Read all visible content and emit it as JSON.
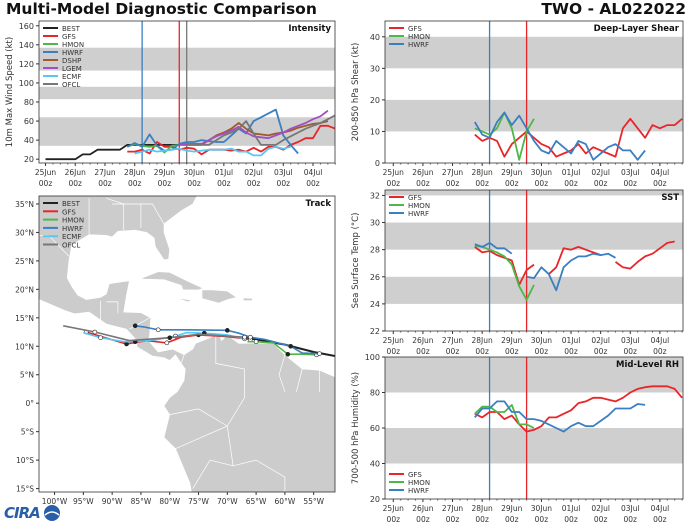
{
  "header": {
    "title": "Multi-Model Diagnostic Comparison",
    "storm": "TWO - AL022022"
  },
  "logo": {
    "text": "CIRA"
  },
  "colors": {
    "BEST": "#222222",
    "GFS": "#e8262a",
    "HMON": "#4db848",
    "HWRF": "#3a7fc1",
    "DSHP": "#9c5a2e",
    "LGEM": "#a24fc2",
    "ECMF": "#56c8f2",
    "OFCL": "#777777",
    "band": "#cfcfcf",
    "land": "#cccccc"
  },
  "time_ticks": [
    "25Jun",
    "26Jun",
    "27Jun",
    "28Jun",
    "29Jun",
    "30Jun",
    "01Jul",
    "02Jul",
    "03Jul",
    "04Jul"
  ],
  "time_tick_hour": "00z",
  "chart_data": [
    {
      "type": "line",
      "title": "Intensity",
      "ylabel": "10m Max Wind Speed (kt)",
      "ylim": [
        16,
        165
      ],
      "yticks": [
        20,
        40,
        60,
        80,
        100,
        120,
        140,
        160
      ],
      "bands": [
        [
          34,
          64
        ],
        [
          83,
          96
        ],
        [
          113,
          137
        ]
      ],
      "legend_position": "top-left",
      "vlines": [
        {
          "time": "28Jun 06z",
          "color": "#3a7fc1"
        },
        {
          "time": "29Jun 12z",
          "color": "#e8262a"
        },
        {
          "time": "29Jun 18z",
          "color": "#777777"
        }
      ],
      "series": [
        {
          "name": "BEST",
          "start": "25Jun 00z",
          "step_hours": 6,
          "values": [
            20,
            20,
            20,
            20,
            20,
            25,
            25,
            30,
            30,
            30,
            30,
            35,
            35,
            35,
            35,
            35,
            35,
            35,
            35
          ]
        },
        {
          "name": "GFS",
          "start": "27Jun 18z",
          "step_hours": 6,
          "values": [
            28,
            28,
            30,
            26,
            38,
            33,
            33,
            30,
            32,
            31,
            25,
            30,
            30,
            30,
            29,
            30,
            28,
            32,
            28,
            33,
            33,
            30,
            35,
            38,
            42,
            42,
            55,
            55,
            52
          ]
        },
        {
          "name": "HMON",
          "start": "27Jun 18z",
          "step_hours": 6,
          "values": [
            33,
            36,
            34,
            33,
            34,
            27,
            34,
            35
          ]
        },
        {
          "name": "HWRF",
          "start": "27Jun 18z",
          "step_hours": 6,
          "values": [
            33,
            37,
            33,
            46,
            34,
            29,
            30,
            36,
            38,
            38,
            40,
            39,
            38,
            38,
            45,
            52,
            47,
            60,
            64,
            68,
            72,
            45,
            35,
            26
          ]
        },
        {
          "name": "DSHP",
          "start": "29Jun 12z",
          "step_hours": 6,
          "values": [
            35,
            35,
            35,
            35,
            40,
            45,
            48,
            52,
            58,
            52,
            47,
            46,
            45,
            47,
            48,
            50,
            53,
            55,
            57,
            58,
            60
          ]
        },
        {
          "name": "LGEM",
          "start": "29Jun 12z",
          "step_hours": 6,
          "values": [
            35,
            36,
            36,
            36,
            40,
            44,
            47,
            50,
            54,
            48,
            44,
            43,
            42,
            45,
            48,
            52,
            55,
            58,
            62,
            65,
            71
          ]
        },
        {
          "name": "ECMF",
          "start": "28Jun 00z",
          "step_hours": 6,
          "values": [
            26,
            28,
            30,
            28,
            29,
            30,
            31,
            29,
            28,
            29,
            30,
            30,
            30,
            31,
            28,
            28,
            24,
            24,
            31,
            33,
            31,
            33
          ]
        },
        {
          "name": "OFCL",
          "start": "29Jun 18z",
          "step_hours": 6,
          "values": [
            35,
            35,
            35,
            35,
            40,
            45,
            48,
            52,
            60,
            47,
            35,
            35,
            35,
            40,
            44,
            48,
            52,
            55,
            58,
            62,
            66
          ]
        }
      ]
    },
    {
      "type": "line",
      "title": "Deep-Layer Shear",
      "ylabel": "200-850 hPa Shear (kt)",
      "ylim": [
        0,
        45
      ],
      "yticks": [
        0,
        10,
        20,
        30,
        40
      ],
      "bands": [
        [
          10,
          20
        ],
        [
          30,
          40
        ]
      ],
      "legend_position": "top-left",
      "vlines": [
        {
          "time": "28Jun 06z",
          "color": "#3a7fc1"
        },
        {
          "time": "29Jun 12z",
          "color": "#e8262a"
        }
      ],
      "series": [
        {
          "name": "GFS",
          "start": "27Jun 18z",
          "step_hours": 6,
          "values": [
            9,
            7,
            8,
            7,
            2,
            6,
            8,
            10,
            8,
            6,
            5,
            2,
            3,
            4,
            6,
            3,
            5,
            4,
            3,
            2,
            11,
            14,
            11,
            8,
            12,
            11,
            12,
            12,
            14
          ]
        },
        {
          "name": "HMON",
          "start": "27Jun 18z",
          "step_hours": 6,
          "values": [
            11,
            10,
            9,
            11,
            16,
            11,
            1,
            10,
            14
          ]
        },
        {
          "name": "HWRF",
          "start": "27Jun 18z",
          "step_hours": 6,
          "values": [
            13,
            9,
            8,
            13,
            16,
            12,
            15,
            11,
            7,
            4,
            3,
            7,
            5,
            3,
            7,
            6,
            1,
            3,
            5,
            6,
            4,
            4,
            1,
            4
          ]
        }
      ]
    },
    {
      "type": "line",
      "title": "SST",
      "ylabel": "Sea Surface Temp (°C)",
      "ylim": [
        22,
        32.4
      ],
      "yticks": [
        22,
        24,
        26,
        28,
        30,
        32
      ],
      "bands": [
        [
          24,
          26
        ],
        [
          28,
          30
        ],
        [
          32,
          33
        ]
      ],
      "legend_position": "top-left",
      "vlines": [
        {
          "time": "28Jun 06z",
          "color": "#3a7fc1"
        },
        {
          "time": "29Jun 12z",
          "color": "#e8262a"
        }
      ],
      "series": [
        {
          "name": "GFS",
          "start": "27Jun 18z",
          "step_hours": 6,
          "values": [
            28.2,
            27.8,
            27.9,
            27.6,
            27.4,
            27.2,
            25.4,
            26.5,
            26.9,
            null,
            26.2,
            26.7,
            28.1,
            28.0,
            28.2,
            28.0,
            27.8,
            27.6,
            null,
            27.1,
            26.7,
            26.6,
            27.1,
            27.5,
            27.7,
            28.1,
            28.5,
            28.6
          ]
        },
        {
          "name": "HMON",
          "start": "27Jun 18z",
          "step_hours": 6,
          "values": [
            28.3,
            28.2,
            28.0,
            27.8,
            27.5,
            26.9,
            25.3,
            24.3,
            25.4
          ]
        },
        {
          "name": "HWRF",
          "start": "27Jun 18z",
          "step_hours": 6,
          "values": [
            28.4,
            28.2,
            28.5,
            28.1,
            28.1,
            27.7,
            null,
            26.0,
            25.9,
            26.7,
            26.2,
            25.0,
            26.7,
            27.2,
            27.5,
            27.5,
            27.7,
            27.6,
            27.7,
            27.4
          ]
        }
      ]
    },
    {
      "type": "line",
      "title": "Mid-Level RH",
      "ylabel": "700-500 hPa Humidity (%)",
      "ylim": [
        20,
        100
      ],
      "yticks": [
        20,
        40,
        60,
        80,
        100
      ],
      "bands": [
        [
          40,
          60
        ],
        [
          80,
          100
        ]
      ],
      "legend_position": "bottom-left",
      "vlines": [
        {
          "time": "28Jun 06z",
          "color": "#3a7fc1"
        },
        {
          "time": "29Jun 12z",
          "color": "#e8262a"
        }
      ],
      "series": [
        {
          "name": "GFS",
          "start": "27Jun 18z",
          "step_hours": 6,
          "values": [
            68,
            66,
            69,
            69,
            65,
            67,
            62,
            58,
            59,
            61,
            66,
            66,
            68,
            70,
            74,
            75,
            77,
            77,
            76,
            75,
            77,
            80,
            82,
            83,
            83.5,
            83.5,
            83.5,
            82,
            77
          ]
        },
        {
          "name": "HMON",
          "start": "27Jun 18z",
          "step_hours": 6,
          "values": [
            68,
            72,
            72,
            69,
            69,
            73,
            62,
            62,
            60
          ]
        },
        {
          "name": "HWRF",
          "start": "27Jun 18z",
          "step_hours": 6,
          "values": [
            66,
            71,
            71,
            75,
            75,
            69,
            69,
            65,
            65,
            64,
            62,
            60,
            58,
            61,
            63,
            61,
            61,
            64,
            67,
            71,
            71,
            71,
            73.5,
            73
          ]
        }
      ]
    },
    {
      "type": "map",
      "title": "Track",
      "xlim": [
        -102.7,
        -51.3
      ],
      "ylim": [
        -15.6,
        36.4
      ],
      "lat_ticks": [
        "35°N",
        "30°N",
        "25°N",
        "20°N",
        "15°N",
        "10°N",
        "5°N",
        "0°",
        "5°S",
        "10°S",
        "15°S"
      ],
      "lat_values": [
        35,
        30,
        25,
        20,
        15,
        10,
        5,
        0,
        -5,
        -10,
        -15
      ],
      "lon_ticks": [
        "100°W",
        "95°W",
        "90°W",
        "85°W",
        "80°W",
        "75°W",
        "70°W",
        "65°W",
        "60°W",
        "55°W"
      ],
      "lon_values": [
        -100,
        -95,
        -90,
        -85,
        -80,
        -75,
        -70,
        -65,
        -60,
        -55
      ],
      "legend_position": "top-left",
      "series": [
        {
          "name": "BEST",
          "points": [
            [
              -51.3,
              8.3
            ],
            [
              -55,
              9.0
            ],
            [
              -60,
              10.3
            ],
            [
              -65,
              11.2
            ],
            [
              -67,
              11.5
            ]
          ]
        },
        {
          "name": "GFS",
          "points": [
            [
              -66,
              11.2
            ],
            [
              -70,
              11.7
            ],
            [
              -75,
              12.0
            ],
            [
              -78,
              11.6
            ],
            [
              -80.5,
              10.6
            ],
            [
              -84,
              11.0
            ],
            [
              -87.5,
              10.4
            ],
            [
              -89.5,
              11.0
            ],
            [
              -94.5,
              12.5
            ]
          ]
        },
        {
          "name": "HMON",
          "points": [
            [
              -54.5,
              8.5
            ],
            [
              -57,
              8.6
            ],
            [
              -59.5,
              8.6
            ],
            [
              -62,
              10.6
            ],
            [
              -65,
              10.8
            ],
            [
              -66.5,
              10.8
            ]
          ]
        },
        {
          "name": "HWRF",
          "points": [
            [
              -54,
              8.7
            ],
            [
              -57,
              8.8
            ],
            [
              -59,
              10.0
            ],
            [
              -63.5,
              11.2
            ],
            [
              -66,
              11.6
            ],
            [
              -68,
              12.3
            ],
            [
              -70,
              12.8
            ],
            [
              -77,
              12.9
            ],
            [
              -82,
              12.9
            ],
            [
              -84.5,
              13.4
            ],
            [
              -86,
              13.6
            ]
          ]
        },
        {
          "name": "ECMF",
          "points": [
            [
              -67,
              11.3
            ],
            [
              -70,
              12.0
            ],
            [
              -74,
              12.3
            ],
            [
              -77,
              12.4
            ],
            [
              -79,
              11.8
            ],
            [
              -82,
              11.2
            ],
            [
              -86,
              10.8
            ],
            [
              -88,
              10.8
            ],
            [
              -92,
              11.5
            ],
            [
              -95,
              12.4
            ]
          ]
        },
        {
          "name": "OFCL",
          "points": [
            [
              -67,
              11.6
            ],
            [
              -75,
              12.1
            ],
            [
              -80,
              11.5
            ],
            [
              -87,
              11.0
            ],
            [
              -93,
              12.5
            ],
            [
              -98.5,
              13.6
            ]
          ]
        }
      ]
    }
  ]
}
